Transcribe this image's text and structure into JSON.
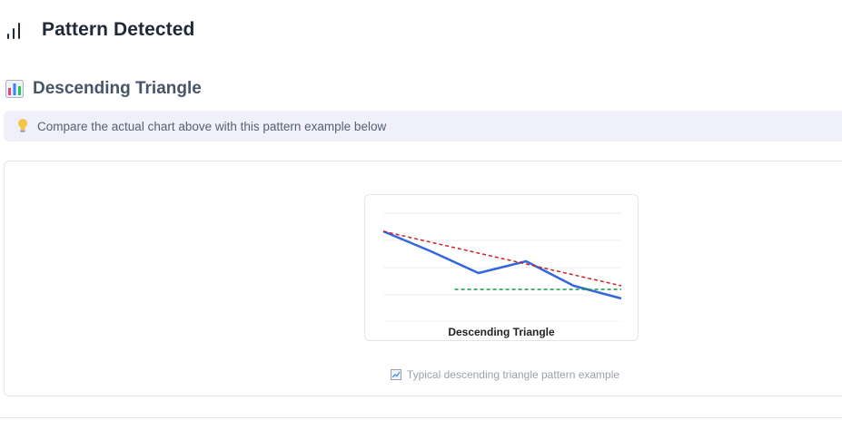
{
  "header": {
    "title": "Pattern Detected",
    "icon": "bar-chart-icon"
  },
  "pattern": {
    "name": "Descending Triangle",
    "icon": "chart-emoji-icon"
  },
  "tip": {
    "icon": "lightbulb-icon",
    "text": "Compare the actual chart above with this pattern example below"
  },
  "example": {
    "caption": "Descending Triangle",
    "footnote_icon": "trend-chart-icon",
    "footnote": "Typical descending triangle pattern example"
  },
  "chart_data": {
    "type": "line",
    "title": "Descending Triangle",
    "x": [
      0,
      1,
      2,
      3,
      4,
      5
    ],
    "series": [
      {
        "values": [
          100,
          78,
          54,
          67,
          40,
          26
        ]
      },
      {
        "x": [
          0,
          5
        ],
        "values": [
          100,
          40
        ]
      },
      {
        "x": [
          1.5,
          5
        ],
        "values": [
          36,
          36
        ]
      }
    ],
    "colors": {
      "price": "#3366dd",
      "resistance": "#cc2222",
      "support": "#119944"
    },
    "grid": true,
    "ylim": [
      0,
      120
    ]
  }
}
